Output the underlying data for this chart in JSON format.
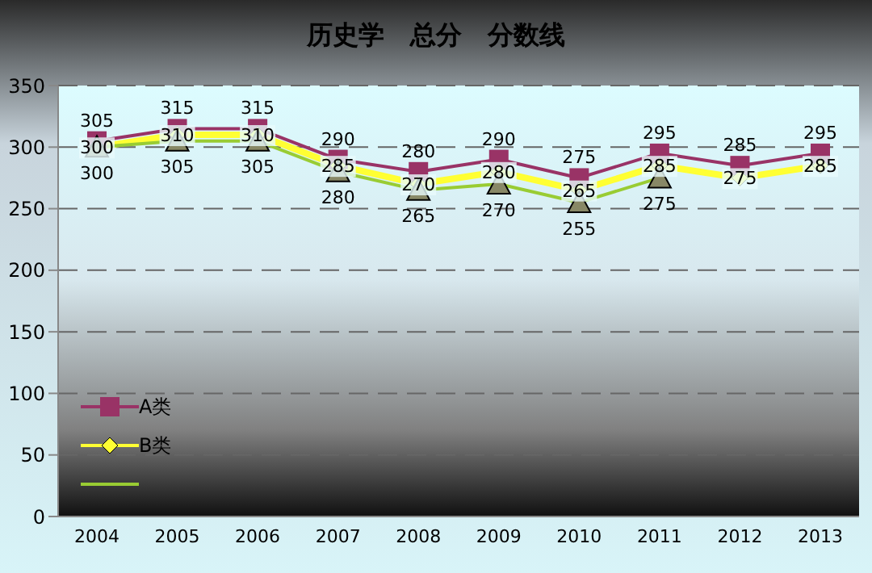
{
  "chart_data": {
    "type": "line",
    "title": "历史学　总分　分数线",
    "categories": [
      "2004",
      "2005",
      "2006",
      "2007",
      "2008",
      "2009",
      "2010",
      "2011",
      "2012",
      "2013"
    ],
    "series": [
      {
        "name": "A类",
        "color": "#993366",
        "marker": "square",
        "values": [
          305,
          315,
          315,
          290,
          280,
          290,
          275,
          295,
          285,
          295
        ]
      },
      {
        "name": "B类",
        "color": "#ffff33",
        "marker": "diamond",
        "values": [
          300,
          310,
          310,
          285,
          270,
          280,
          265,
          285,
          275,
          285
        ]
      },
      {
        "color": "#99cc33",
        "marker": "triangle",
        "values": [
          300,
          305,
          305,
          280,
          265,
          270,
          255,
          275,
          null,
          null
        ]
      }
    ],
    "ylim": [
      0,
      350
    ],
    "yticks": [
      0,
      50,
      100,
      150,
      200,
      250,
      300,
      350
    ],
    "grid": "y",
    "legend": "bottom left",
    "data_labels": true
  }
}
